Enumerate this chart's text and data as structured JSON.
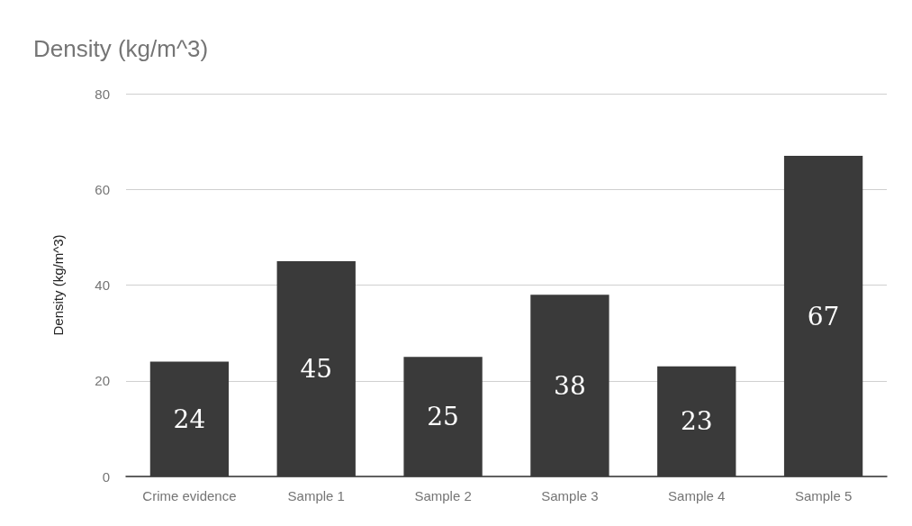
{
  "chart_data": {
    "type": "bar",
    "title": "Density (kg/m^3)",
    "ylabel": "Density (kg/m^3)",
    "categories": [
      "Crime evidence",
      "Sample 1",
      "Sample 2",
      "Sample 3",
      "Sample 4",
      "Sample 5"
    ],
    "values": [
      24,
      45,
      25,
      38,
      23,
      67
    ],
    "color": "#3a3a3a",
    "ylim": [
      0,
      80
    ],
    "yticks": [
      0,
      20,
      40,
      60,
      80
    ],
    "grid": "y",
    "data_labels": true
  }
}
